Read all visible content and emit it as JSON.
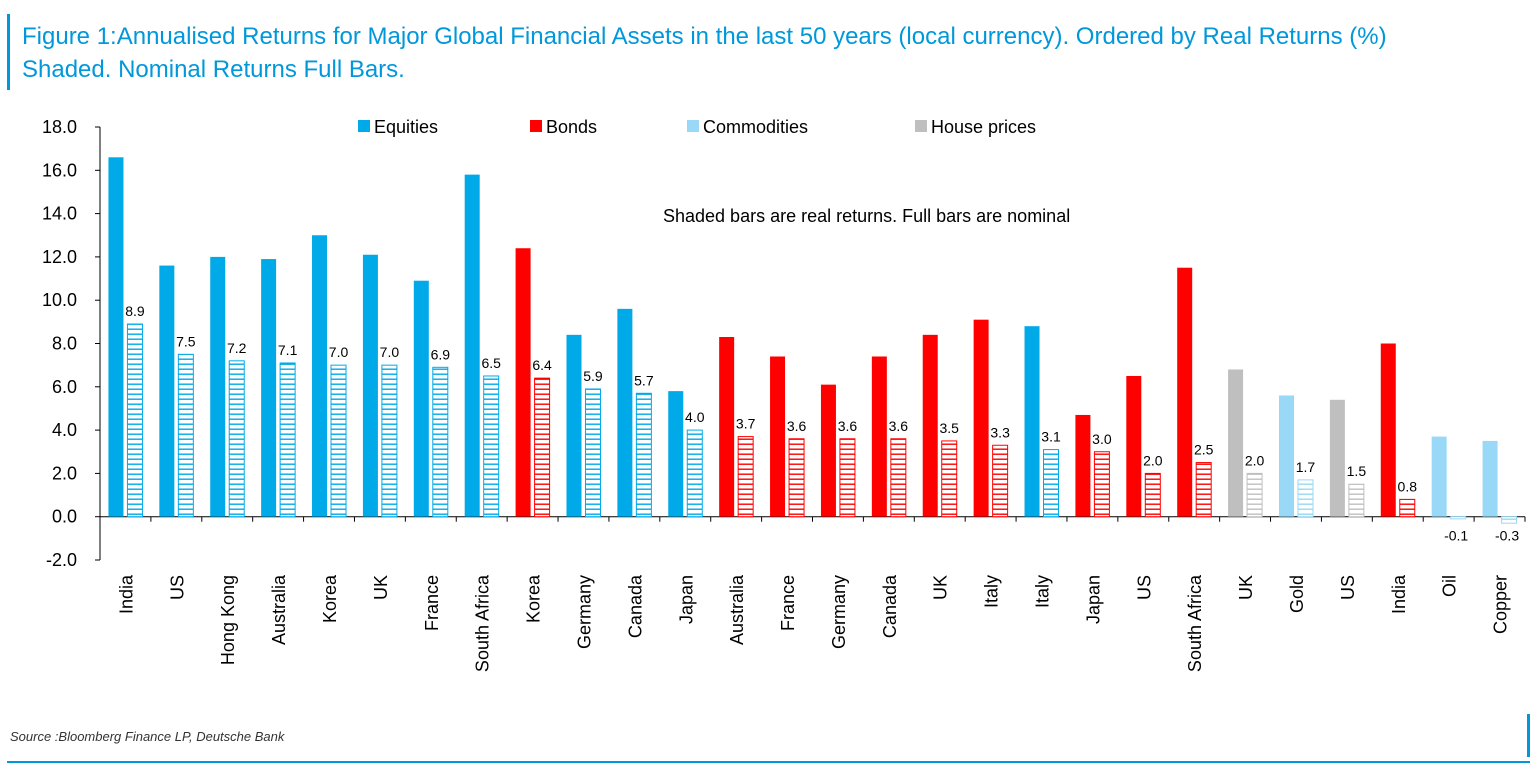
{
  "title": "Figure 1:Annualised Returns for Major Global Financial Assets in the last 50 years (local currency). Ordered by Real Returns (%) Shaded. Nominal Returns Full Bars.",
  "source": "Source :Bloomberg Finance LP, Deutsche Bank",
  "chart_data": {
    "type": "bar",
    "annotation": "Shaded bars are real returns. Full bars are nominal",
    "ylim": [
      -2.0,
      18.0
    ],
    "yticks": [
      -2.0,
      0.0,
      2.0,
      4.0,
      6.0,
      8.0,
      10.0,
      12.0,
      14.0,
      16.0,
      18.0
    ],
    "legend": {
      "placement": "top",
      "entries": [
        {
          "name": "Equities",
          "color": "#00a9e8"
        },
        {
          "name": "Bonds",
          "color": "#ff0000"
        },
        {
          "name": "Commodities",
          "color": "#99d8f6"
        },
        {
          "name": "House prices",
          "color": "#bfbfbf"
        }
      ]
    },
    "categories": [
      "India",
      "US",
      "Hong Kong",
      "Australia",
      "Korea",
      "UK",
      "France",
      "South Africa",
      "Korea",
      "Germany",
      "Canada",
      "Japan",
      "Australia",
      "France",
      "Germany",
      "Canada",
      "UK",
      "Italy",
      "Italy",
      "Japan",
      "US",
      "South Africa",
      "UK",
      "Gold",
      "US",
      "India",
      "Oil",
      "Copper"
    ],
    "asset_class": [
      "Equities",
      "Equities",
      "Equities",
      "Equities",
      "Equities",
      "Equities",
      "Equities",
      "Equities",
      "Bonds",
      "Equities",
      "Equities",
      "Equities",
      "Bonds",
      "Bonds",
      "Bonds",
      "Bonds",
      "Bonds",
      "Bonds",
      "Equities",
      "Bonds",
      "Bonds",
      "Bonds",
      "House prices",
      "Commodities",
      "House prices",
      "Bonds",
      "Commodities",
      "Commodities"
    ],
    "series": [
      {
        "name": "Nominal",
        "values": [
          16.6,
          11.6,
          12.0,
          11.9,
          13.0,
          12.1,
          10.9,
          15.8,
          12.4,
          8.4,
          9.6,
          5.8,
          8.3,
          7.4,
          6.1,
          7.4,
          8.4,
          9.1,
          8.8,
          4.7,
          6.5,
          11.5,
          6.8,
          5.6,
          5.4,
          8.0,
          3.7,
          3.5
        ]
      },
      {
        "name": "Real",
        "values": [
          8.9,
          7.5,
          7.2,
          7.1,
          7.0,
          7.0,
          6.9,
          6.5,
          6.4,
          5.9,
          5.7,
          4.0,
          3.7,
          3.6,
          3.6,
          3.6,
          3.5,
          3.3,
          3.1,
          3.0,
          2.0,
          2.5,
          2.0,
          1.7,
          1.5,
          0.8,
          -0.1,
          -0.3
        ]
      }
    ],
    "data_labels": [
      "8.9",
      "7.5",
      "7.2",
      "7.1",
      "7.0",
      "7.0",
      "6.9",
      "6.5",
      "6.4",
      "5.9",
      "5.7",
      "4.0",
      "3.7",
      "3.6",
      "3.6",
      "3.6",
      "3.5",
      "3.3",
      "3.1",
      "3.0",
      "2.0",
      "2.5",
      "2.0",
      "1.7",
      "1.5",
      "0.8",
      "-0.1",
      "-0.3"
    ]
  }
}
